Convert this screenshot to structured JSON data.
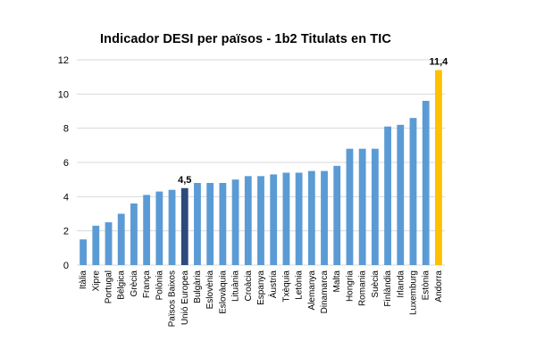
{
  "chart_data": {
    "type": "bar",
    "title": "Indicador DESI per països - 1b2 Titulats en TIC",
    "xlabel": "",
    "ylabel": "",
    "ylim": [
      0,
      12
    ],
    "yticks": [
      "0",
      "2",
      "4",
      "6",
      "8",
      "10",
      "12"
    ],
    "grid": true,
    "legend": "none",
    "categories": [
      "Itàlia",
      "Xipre",
      "Portugal",
      "Bèlgica",
      "Grècia",
      "França",
      "Polònia",
      "Països Baixos",
      "Unió Europea",
      "Bulgària",
      "Eslovènia",
      "Eslovàquia",
      "Lituània",
      "Croàcia",
      "Espanya",
      "Àustria",
      "Txèquia",
      "Letònia",
      "Alemanya",
      "Dinamarca",
      "Malta",
      "Hongria",
      "Romania",
      "Suècia",
      "Finlàndia",
      "Irlanda",
      "Luxemburg",
      "Estònia",
      "Andorra"
    ],
    "values": [
      1.5,
      2.3,
      2.5,
      3.0,
      3.6,
      4.1,
      4.3,
      4.4,
      4.5,
      4.8,
      4.8,
      4.8,
      5.0,
      5.2,
      5.2,
      5.3,
      5.4,
      5.4,
      5.5,
      5.5,
      5.8,
      6.8,
      6.8,
      6.8,
      8.1,
      8.2,
      8.6,
      9.6,
      11.4
    ],
    "data_labels": [
      {
        "category": "Unió Europea",
        "text": "4,5"
      },
      {
        "category": "Andorra",
        "text": "11,4"
      }
    ],
    "colors": {
      "default": "#5b9bd5",
      "highlight_eu": "#2e4a7d",
      "highlight_andorra": "#ffc000",
      "grid": "#d9d9d9"
    },
    "highlights": {
      "Unió Europea": "highlight_eu",
      "Andorra": "highlight_andorra"
    }
  }
}
